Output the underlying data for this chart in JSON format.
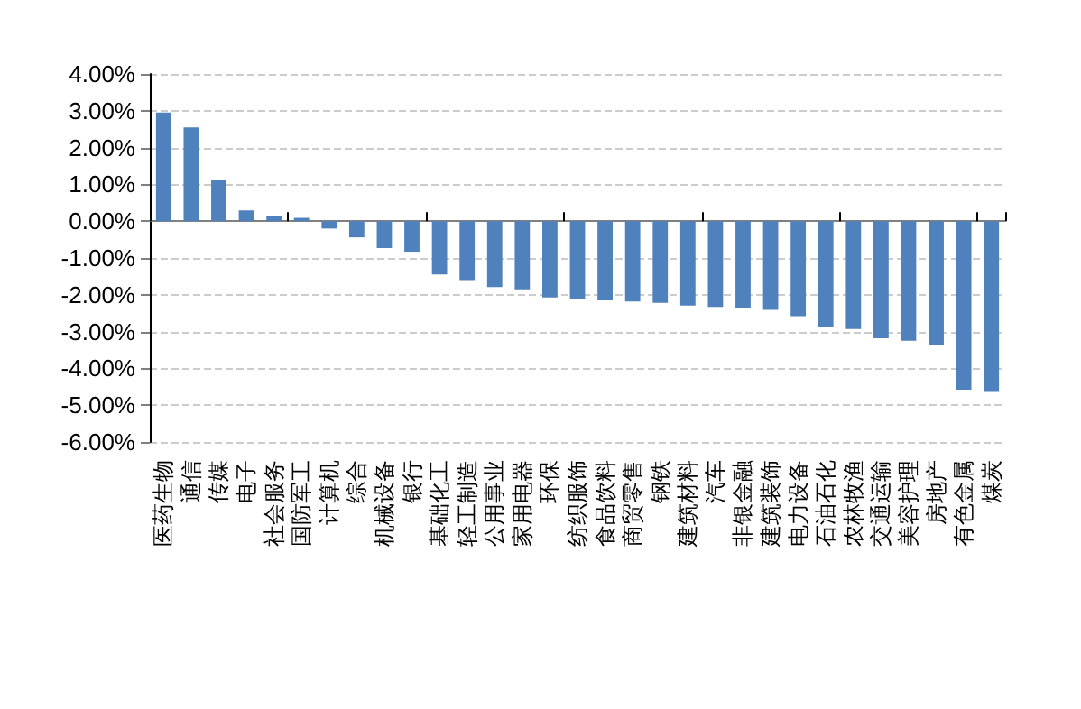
{
  "chart_data": {
    "type": "bar",
    "categories": [
      "医药生物",
      "通信",
      "传媒",
      "电子",
      "社会服务",
      "国防军工",
      "计算机",
      "综合",
      "机械设备",
      "银行",
      "基础化工",
      "轻工制造",
      "公用事业",
      "家用电器",
      "环保",
      "纺织服饰",
      "食品饮料",
      "商贸零售",
      "钢铁",
      "建筑材料",
      "汽车",
      "非银金融",
      "建筑装饰",
      "电力设备",
      "石油石化",
      "农林牧渔",
      "交通运输",
      "美容护理",
      "房地产",
      "有色金属",
      "煤炭"
    ],
    "values": [
      2.95,
      2.55,
      1.11,
      0.29,
      0.13,
      0.09,
      -0.2,
      -0.44,
      -0.73,
      -0.83,
      -1.45,
      -1.6,
      -1.79,
      -1.85,
      -2.07,
      -2.12,
      -2.15,
      -2.18,
      -2.22,
      -2.29,
      -2.33,
      -2.36,
      -2.41,
      -2.58,
      -2.89,
      -2.93,
      -3.18,
      -3.25,
      -3.38,
      -4.58,
      -4.64
    ],
    "color": "#4f81bd",
    "ylim": [
      -6,
      4
    ],
    "yticks": [
      {
        "value": 4,
        "label": "4.00%"
      },
      {
        "value": 3,
        "label": "3.00%"
      },
      {
        "value": 2,
        "label": "2.00%"
      },
      {
        "value": 1,
        "label": "1.00%"
      },
      {
        "value": 0,
        "label": "0.00%"
      },
      {
        "value": -1,
        "label": "-1.00%"
      },
      {
        "value": -2,
        "label": "-2.00%"
      },
      {
        "value": -3,
        "label": "-3.00%"
      },
      {
        "value": -4,
        "label": "-4.00%"
      },
      {
        "value": -5,
        "label": "-5.00%"
      },
      {
        "value": -6,
        "label": "-6.00%"
      }
    ],
    "grid": "y"
  }
}
